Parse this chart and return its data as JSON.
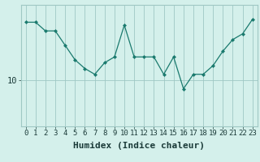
{
  "x": [
    0,
    1,
    2,
    3,
    4,
    5,
    6,
    7,
    8,
    9,
    10,
    11,
    12,
    13,
    14,
    15,
    16,
    17,
    18,
    19,
    20,
    21,
    22,
    23
  ],
  "y": [
    20,
    20,
    18.5,
    18.5,
    16,
    13.5,
    12,
    11,
    13,
    14,
    19.5,
    14,
    14,
    14,
    11,
    14,
    8.5,
    11,
    11,
    12.5,
    15,
    17,
    18,
    20.5
  ],
  "line_color": "#1a7a6e",
  "marker": "D",
  "marker_size": 2.0,
  "bg_color": "#d4f0eb",
  "grid_color": "#9fc8c4",
  "xlabel": "Humidex (Indice chaleur)",
  "ytick_labels": [
    "10"
  ],
  "ytick_values": [
    10
  ],
  "ylim": [
    2,
    23
  ],
  "xlim": [
    -0.5,
    23.5
  ],
  "xlabel_fontsize": 8,
  "tick_fontsize": 6.5
}
